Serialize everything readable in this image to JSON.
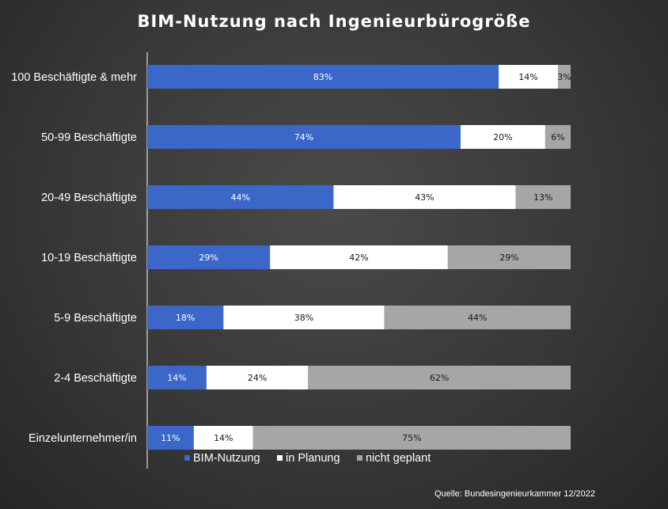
{
  "chart_data": {
    "type": "bar",
    "orientation": "horizontal",
    "stacked": true,
    "title": "BIM-Nutzung nach Ingenieurbürogröße",
    "categories": [
      "100 Beschäftigte & mehr",
      "50-99 Beschäftigte",
      "20-49 Beschäftigte",
      "10-19 Beschäftigte",
      "5-9 Beschäftigte",
      "2-4 Beschäftigte",
      "Einzelunternehmer/in"
    ],
    "series": [
      {
        "name": "BIM-Nutzung",
        "color": "#3a67c8",
        "text_color": "#ffffff",
        "values": [
          83,
          74,
          44,
          29,
          18,
          14,
          11
        ],
        "labels": [
          "83%",
          "74%",
          "44%",
          "29%",
          "18%",
          "14%",
          "11%"
        ]
      },
      {
        "name": "in Planung",
        "color": "#ffffff",
        "text_color": "#1a1a1a",
        "values": [
          14,
          20,
          43,
          42,
          38,
          24,
          14
        ],
        "labels": [
          "14%",
          "20%",
          "43%",
          "42%",
          "38%",
          "24%",
          "14%"
        ]
      },
      {
        "name": "nicht geplant",
        "color": "#a6a6a6",
        "text_color": "#1a1a1a",
        "values": [
          3,
          6,
          13,
          29,
          44,
          62,
          75
        ],
        "labels": [
          "3%",
          "6%",
          "13%",
          "29%",
          "44%",
          "62%",
          "75%"
        ]
      }
    ],
    "xlim": [
      0,
      100
    ],
    "legend_position": "bottom",
    "grid": false,
    "source": "Quelle: Bundesingenieurkammer 12/2022"
  }
}
